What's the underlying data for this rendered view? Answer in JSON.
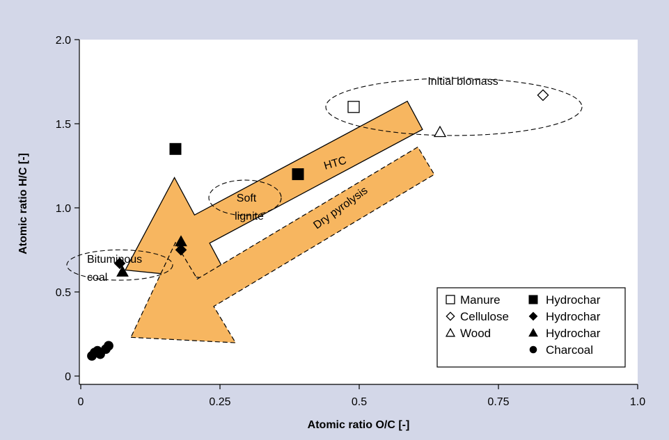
{
  "chart_data": {
    "type": "scatter",
    "title": "",
    "xlabel": "Atomic ratio O/C [-]",
    "ylabel": "Atomic ratio H/C [-]",
    "xlim": [
      0,
      1.0
    ],
    "ylim": [
      0,
      2.0
    ],
    "grid": false,
    "legend_position": "bottom-right",
    "x_ticks": [
      {
        "value": 0,
        "label": "0"
      },
      {
        "value": 0.25,
        "label": "0.25"
      },
      {
        "value": 0.5,
        "label": "0.5"
      },
      {
        "value": 0.75,
        "label": "0.75"
      },
      {
        "value": 1.0,
        "label": "1.0"
      }
    ],
    "y_ticks": [
      {
        "value": 0,
        "label": "0"
      },
      {
        "value": 0.5,
        "label": "0.5"
      },
      {
        "value": 1.0,
        "label": "1.0"
      },
      {
        "value": 1.5,
        "label": "1.5"
      },
      {
        "value": 2.0,
        "label": "2.0"
      }
    ],
    "series": [
      {
        "name": "Manure",
        "marker": "square-open",
        "points": [
          {
            "x": 0.49,
            "y": 1.6
          }
        ]
      },
      {
        "name": "Cellulose",
        "marker": "diamond-open",
        "points": [
          {
            "x": 0.83,
            "y": 1.67
          }
        ]
      },
      {
        "name": "Wood",
        "marker": "triangle-open",
        "points": [
          {
            "x": 0.645,
            "y": 1.45
          }
        ]
      },
      {
        "name": "Hydrochar",
        "marker": "square-filled",
        "points": [
          {
            "x": 0.17,
            "y": 1.35
          },
          {
            "x": 0.39,
            "y": 1.2
          }
        ]
      },
      {
        "name": "Hydrochar",
        "marker": "diamond-filled",
        "points": [
          {
            "x": 0.07,
            "y": 0.67
          },
          {
            "x": 0.18,
            "y": 0.75
          }
        ]
      },
      {
        "name": "Hydrochar",
        "marker": "triangle-filled",
        "points": [
          {
            "x": 0.075,
            "y": 0.62
          },
          {
            "x": 0.18,
            "y": 0.8
          }
        ]
      },
      {
        "name": "Charcoal",
        "marker": "circle-filled",
        "points": [
          {
            "x": 0.02,
            "y": 0.12
          },
          {
            "x": 0.025,
            "y": 0.14
          },
          {
            "x": 0.03,
            "y": 0.15
          },
          {
            "x": 0.035,
            "y": 0.13
          },
          {
            "x": 0.045,
            "y": 0.16
          },
          {
            "x": 0.05,
            "y": 0.18
          }
        ]
      }
    ],
    "regions": [
      {
        "label": "Initial biomass",
        "cx": 0.67,
        "cy": 1.6,
        "rx": 0.23,
        "ry": 0.34
      },
      {
        "label": "Soft lignite",
        "cx": 0.295,
        "cy": 1.06,
        "rx": 0.065,
        "ry": 0.21
      },
      {
        "label": "Bituminous coal",
        "cx": 0.07,
        "cy": 0.66,
        "rx": 0.095,
        "ry": 0.18
      }
    ],
    "arrows": [
      {
        "label": "HTC",
        "from": {
          "x": 0.6,
          "y": 1.55
        },
        "to": {
          "x": 0.08,
          "y": 0.63
        }
      },
      {
        "label": "Dry pyrolysis",
        "from": {
          "x": 0.62,
          "y": 1.28
        },
        "to": {
          "x": 0.09,
          "y": 0.23
        }
      }
    ]
  },
  "annotations": {
    "initial_biomass": "Initial biomass",
    "htc": "HTC",
    "soft": "Soft",
    "lignite": "lignite",
    "dry_pyrolysis": "Dry pyrolysis",
    "bituminous": "Bituminous",
    "coal": "coal"
  },
  "legend": {
    "col1": [
      {
        "label": "Manure",
        "marker": "square-open"
      },
      {
        "label": "Cellulose",
        "marker": "diamond-open"
      },
      {
        "label": "Wood",
        "marker": "triangle-open"
      }
    ],
    "col2": [
      {
        "label": "Hydrochar",
        "marker": "square-filled"
      },
      {
        "label": "Hydrochar",
        "marker": "diamond-filled"
      },
      {
        "label": "Hydrochar",
        "marker": "triangle-filled"
      },
      {
        "label": "Charcoal",
        "marker": "circle-filled"
      }
    ]
  },
  "colors": {
    "background": "#d3d7e8",
    "plot_bg": "#ffffff",
    "arrow_fill": "#f7b660",
    "ink": "#000000"
  }
}
